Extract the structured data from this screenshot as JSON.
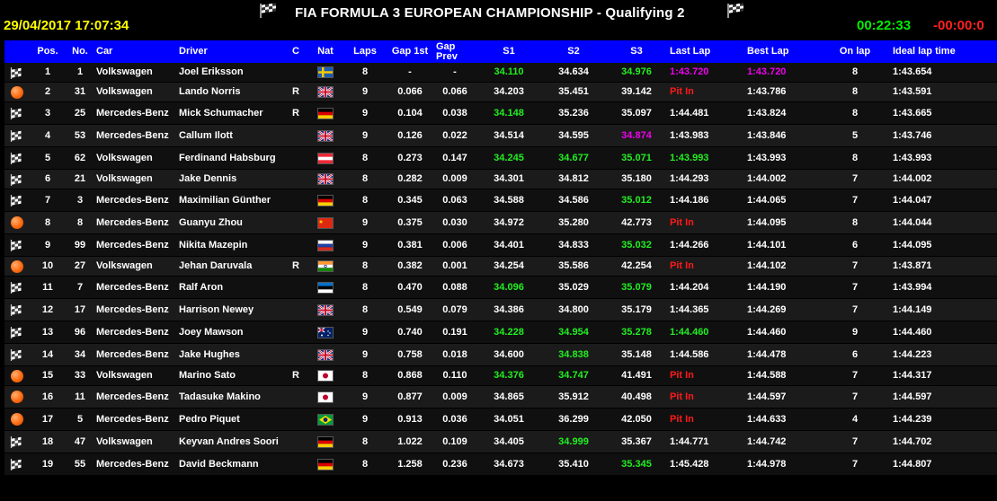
{
  "header": {
    "datetime": "29/04/2017 17:07:34",
    "title": "FIA FORMULA 3 EUROPEAN CHAMPIONSHIP - Qualifying 2",
    "elapsed": "00:22:33",
    "remaining": "-00:00:0",
    "left_icon": "checkered-flag-icon",
    "right_icon": "checkered-flag-icon"
  },
  "columns": [
    "",
    "Pos.",
    "No.",
    "Car",
    "Driver",
    "C",
    "Nat",
    "Laps",
    "Gap 1st",
    "Gap Prev",
    "S1",
    "S2",
    "S3",
    "Last Lap",
    "Best Lap",
    "On lap",
    "Ideal lap time"
  ],
  "colors": {
    "header_bg": "#0000ff",
    "best_overall": "#ee00ee",
    "personal_best": "#22ee22",
    "pit": "#ff1a1a",
    "datetime": "#ffff00",
    "timer": "#00ee00"
  },
  "rows": [
    {
      "status": "running",
      "pos": "1",
      "no": "1",
      "car": "Volkswagen",
      "driver": "Joel Eriksson",
      "c": "",
      "nat": "SWE",
      "laps": "8",
      "gap1": "-",
      "gapp": "-",
      "s1": "34.110",
      "s1c": "green",
      "s2": "34.634",
      "s2c": "",
      "s3": "34.976",
      "s3c": "green",
      "last": "1:43.720",
      "lastc": "purple",
      "best": "1:43.720",
      "bestc": "purple",
      "onlap": "8",
      "ideal": "1:43.654"
    },
    {
      "status": "pit",
      "pos": "2",
      "no": "31",
      "car": "Volkswagen",
      "driver": "Lando Norris",
      "c": "R",
      "nat": "GBR",
      "laps": "9",
      "gap1": "0.066",
      "gapp": "0.066",
      "s1": "34.203",
      "s1c": "",
      "s2": "35.451",
      "s2c": "",
      "s3": "39.142",
      "s3c": "",
      "last": "Pit In",
      "lastc": "red",
      "best": "1:43.786",
      "bestc": "",
      "onlap": "8",
      "ideal": "1:43.591"
    },
    {
      "status": "running",
      "pos": "3",
      "no": "25",
      "car": "Mercedes-Benz",
      "driver": "Mick Schumacher",
      "c": "R",
      "nat": "GER",
      "laps": "9",
      "gap1": "0.104",
      "gapp": "0.038",
      "s1": "34.148",
      "s1c": "green",
      "s2": "35.236",
      "s2c": "",
      "s3": "35.097",
      "s3c": "",
      "last": "1:44.481",
      "lastc": "",
      "best": "1:43.824",
      "bestc": "",
      "onlap": "8",
      "ideal": "1:43.665"
    },
    {
      "status": "running",
      "pos": "4",
      "no": "53",
      "car": "Mercedes-Benz",
      "driver": "Callum Ilott",
      "c": "",
      "nat": "GBR",
      "laps": "9",
      "gap1": "0.126",
      "gapp": "0.022",
      "s1": "34.514",
      "s1c": "",
      "s2": "34.595",
      "s2c": "",
      "s3": "34.874",
      "s3c": "purple",
      "last": "1:43.983",
      "lastc": "",
      "best": "1:43.846",
      "bestc": "",
      "onlap": "5",
      "ideal": "1:43.746"
    },
    {
      "status": "running",
      "pos": "5",
      "no": "62",
      "car": "Volkswagen",
      "driver": "Ferdinand Habsburg",
      "c": "",
      "nat": "AUT",
      "laps": "8",
      "gap1": "0.273",
      "gapp": "0.147",
      "s1": "34.245",
      "s1c": "green",
      "s2": "34.677",
      "s2c": "green",
      "s3": "35.071",
      "s3c": "green",
      "last": "1:43.993",
      "lastc": "green",
      "best": "1:43.993",
      "bestc": "",
      "onlap": "8",
      "ideal": "1:43.993"
    },
    {
      "status": "running",
      "pos": "6",
      "no": "21",
      "car": "Volkswagen",
      "driver": "Jake Dennis",
      "c": "",
      "nat": "GBR",
      "laps": "8",
      "gap1": "0.282",
      "gapp": "0.009",
      "s1": "34.301",
      "s1c": "",
      "s2": "34.812",
      "s2c": "",
      "s3": "35.180",
      "s3c": "",
      "last": "1:44.293",
      "lastc": "",
      "best": "1:44.002",
      "bestc": "",
      "onlap": "7",
      "ideal": "1:44.002"
    },
    {
      "status": "running",
      "pos": "7",
      "no": "3",
      "car": "Mercedes-Benz",
      "driver": "Maximilian Günther",
      "c": "",
      "nat": "GER",
      "laps": "8",
      "gap1": "0.345",
      "gapp": "0.063",
      "s1": "34.588",
      "s1c": "",
      "s2": "34.586",
      "s2c": "",
      "s3": "35.012",
      "s3c": "green",
      "last": "1:44.186",
      "lastc": "",
      "best": "1:44.065",
      "bestc": "",
      "onlap": "7",
      "ideal": "1:44.047"
    },
    {
      "status": "pit",
      "pos": "8",
      "no": "8",
      "car": "Mercedes-Benz",
      "driver": "Guanyu Zhou",
      "c": "",
      "nat": "CHN",
      "laps": "9",
      "gap1": "0.375",
      "gapp": "0.030",
      "s1": "34.972",
      "s1c": "",
      "s2": "35.280",
      "s2c": "",
      "s3": "42.773",
      "s3c": "",
      "last": "Pit In",
      "lastc": "red",
      "best": "1:44.095",
      "bestc": "",
      "onlap": "8",
      "ideal": "1:44.044"
    },
    {
      "status": "running",
      "pos": "9",
      "no": "99",
      "car": "Mercedes-Benz",
      "driver": "Nikita Mazepin",
      "c": "",
      "nat": "RUS",
      "laps": "9",
      "gap1": "0.381",
      "gapp": "0.006",
      "s1": "34.401",
      "s1c": "",
      "s2": "34.833",
      "s2c": "",
      "s3": "35.032",
      "s3c": "green",
      "last": "1:44.266",
      "lastc": "",
      "best": "1:44.101",
      "bestc": "",
      "onlap": "6",
      "ideal": "1:44.095"
    },
    {
      "status": "pit",
      "pos": "10",
      "no": "27",
      "car": "Volkswagen",
      "driver": "Jehan Daruvala",
      "c": "R",
      "nat": "IND",
      "laps": "8",
      "gap1": "0.382",
      "gapp": "0.001",
      "s1": "34.254",
      "s1c": "",
      "s2": "35.586",
      "s2c": "",
      "s3": "42.254",
      "s3c": "",
      "last": "Pit In",
      "lastc": "red",
      "best": "1:44.102",
      "bestc": "",
      "onlap": "7",
      "ideal": "1:43.871"
    },
    {
      "status": "running",
      "pos": "11",
      "no": "7",
      "car": "Mercedes-Benz",
      "driver": "Ralf Aron",
      "c": "",
      "nat": "EST",
      "laps": "8",
      "gap1": "0.470",
      "gapp": "0.088",
      "s1": "34.096",
      "s1c": "green",
      "s2": "35.029",
      "s2c": "",
      "s3": "35.079",
      "s3c": "green",
      "last": "1:44.204",
      "lastc": "",
      "best": "1:44.190",
      "bestc": "",
      "onlap": "7",
      "ideal": "1:43.994"
    },
    {
      "status": "running",
      "pos": "12",
      "no": "17",
      "car": "Mercedes-Benz",
      "driver": "Harrison Newey",
      "c": "",
      "nat": "GBR",
      "laps": "8",
      "gap1": "0.549",
      "gapp": "0.079",
      "s1": "34.386",
      "s1c": "",
      "s2": "34.800",
      "s2c": "",
      "s3": "35.179",
      "s3c": "",
      "last": "1:44.365",
      "lastc": "",
      "best": "1:44.269",
      "bestc": "",
      "onlap": "7",
      "ideal": "1:44.149"
    },
    {
      "status": "running",
      "pos": "13",
      "no": "96",
      "car": "Mercedes-Benz",
      "driver": "Joey Mawson",
      "c": "",
      "nat": "AUS",
      "laps": "9",
      "gap1": "0.740",
      "gapp": "0.191",
      "s1": "34.228",
      "s1c": "green",
      "s2": "34.954",
      "s2c": "green",
      "s3": "35.278",
      "s3c": "green",
      "last": "1:44.460",
      "lastc": "green",
      "best": "1:44.460",
      "bestc": "",
      "onlap": "9",
      "ideal": "1:44.460"
    },
    {
      "status": "running",
      "pos": "14",
      "no": "34",
      "car": "Mercedes-Benz",
      "driver": "Jake Hughes",
      "c": "",
      "nat": "GBR",
      "laps": "9",
      "gap1": "0.758",
      "gapp": "0.018",
      "s1": "34.600",
      "s1c": "",
      "s2": "34.838",
      "s2c": "green",
      "s3": "35.148",
      "s3c": "",
      "last": "1:44.586",
      "lastc": "",
      "best": "1:44.478",
      "bestc": "",
      "onlap": "6",
      "ideal": "1:44.223"
    },
    {
      "status": "pit",
      "pos": "15",
      "no": "33",
      "car": "Volkswagen",
      "driver": "Marino Sato",
      "c": "R",
      "nat": "JPN",
      "laps": "8",
      "gap1": "0.868",
      "gapp": "0.110",
      "s1": "34.376",
      "s1c": "green",
      "s2": "34.747",
      "s2c": "green",
      "s3": "41.491",
      "s3c": "",
      "last": "Pit In",
      "lastc": "red",
      "best": "1:44.588",
      "bestc": "",
      "onlap": "7",
      "ideal": "1:44.317"
    },
    {
      "status": "pit",
      "pos": "16",
      "no": "11",
      "car": "Mercedes-Benz",
      "driver": "Tadasuke Makino",
      "c": "",
      "nat": "JPN",
      "laps": "9",
      "gap1": "0.877",
      "gapp": "0.009",
      "s1": "34.865",
      "s1c": "",
      "s2": "35.912",
      "s2c": "",
      "s3": "40.498",
      "s3c": "",
      "last": "Pit In",
      "lastc": "red",
      "best": "1:44.597",
      "bestc": "",
      "onlap": "7",
      "ideal": "1:44.597"
    },
    {
      "status": "pit",
      "pos": "17",
      "no": "5",
      "car": "Mercedes-Benz",
      "driver": "Pedro Piquet",
      "c": "",
      "nat": "BRA",
      "laps": "9",
      "gap1": "0.913",
      "gapp": "0.036",
      "s1": "34.051",
      "s1c": "",
      "s2": "36.299",
      "s2c": "",
      "s3": "42.050",
      "s3c": "",
      "last": "Pit In",
      "lastc": "red",
      "best": "1:44.633",
      "bestc": "",
      "onlap": "4",
      "ideal": "1:44.239"
    },
    {
      "status": "running",
      "pos": "18",
      "no": "47",
      "car": "Volkswagen",
      "driver": "Keyvan Andres Soori",
      "c": "",
      "nat": "GER",
      "laps": "8",
      "gap1": "1.022",
      "gapp": "0.109",
      "s1": "34.405",
      "s1c": "",
      "s2": "34.999",
      "s2c": "green",
      "s3": "35.367",
      "s3c": "",
      "last": "1:44.771",
      "lastc": "",
      "best": "1:44.742",
      "bestc": "",
      "onlap": "7",
      "ideal": "1:44.702"
    },
    {
      "status": "running",
      "pos": "19",
      "no": "55",
      "car": "Mercedes-Benz",
      "driver": "David Beckmann",
      "c": "",
      "nat": "GER",
      "laps": "8",
      "gap1": "1.258",
      "gapp": "0.236",
      "s1": "34.673",
      "s1c": "",
      "s2": "35.410",
      "s2c": "",
      "s3": "35.345",
      "s3c": "green",
      "last": "1:45.428",
      "lastc": "",
      "best": "1:44.978",
      "bestc": "",
      "onlap": "7",
      "ideal": "1:44.807"
    }
  ]
}
